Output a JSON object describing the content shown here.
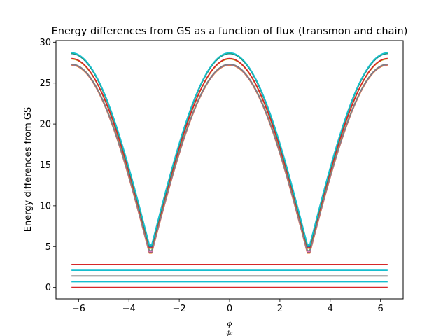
{
  "chart_data": {
    "type": "line",
    "title": "Energy differences from GS as a function of flux (transmon and chain)",
    "xlabel_numerator": "ϕ",
    "xlabel_denominator": "ϕ₀",
    "ylabel": "Energy differences from GS",
    "xlim": [
      -6.9,
      6.9
    ],
    "ylim": [
      -1.4,
      30.2
    ],
    "xticks": [
      -6,
      -4,
      -2,
      0,
      2,
      4,
      6
    ],
    "xtick_labels": [
      "−6",
      "−4",
      "−2",
      "0",
      "2",
      "4",
      "6"
    ],
    "yticks": [
      0,
      5,
      10,
      15,
      20,
      25,
      30
    ],
    "ytick_labels": [
      "0",
      "5",
      "10",
      "15",
      "20",
      "25",
      "30"
    ],
    "x_range": [
      -6.2832,
      6.2832
    ],
    "grid": false,
    "flat_series": [
      {
        "color": "#d62728",
        "value": 0.0
      },
      {
        "color": "#17becf",
        "value": 0.7
      },
      {
        "color": "#7f7f7f",
        "value": 1.4
      },
      {
        "color": "#17becf",
        "value": 2.1
      },
      {
        "color": "#d62728",
        "value": 2.8
      }
    ],
    "curve_series": [
      {
        "color": "#ff7f0e",
        "max": 27.2,
        "min": 4.2
      },
      {
        "color": "#9467bd",
        "max": 27.25,
        "min": 4.3
      },
      {
        "color": "#8c564b",
        "max": 27.3,
        "min": 4.35
      },
      {
        "color": "#e377c2",
        "max": 27.3,
        "min": 4.4
      },
      {
        "color": "#7f7f7f",
        "max": 27.3,
        "min": 4.5
      },
      {
        "color": "#bcbd22",
        "max": 27.95,
        "min": 4.8
      },
      {
        "color": "#d62728",
        "max": 28.0,
        "min": 4.85
      },
      {
        "color": "#1f77b4",
        "max": 28.6,
        "min": 5.0
      },
      {
        "color": "#2ca02c",
        "max": 28.65,
        "min": 5.1
      },
      {
        "color": "#17becf",
        "max": 28.7,
        "min": 5.2
      }
    ]
  }
}
